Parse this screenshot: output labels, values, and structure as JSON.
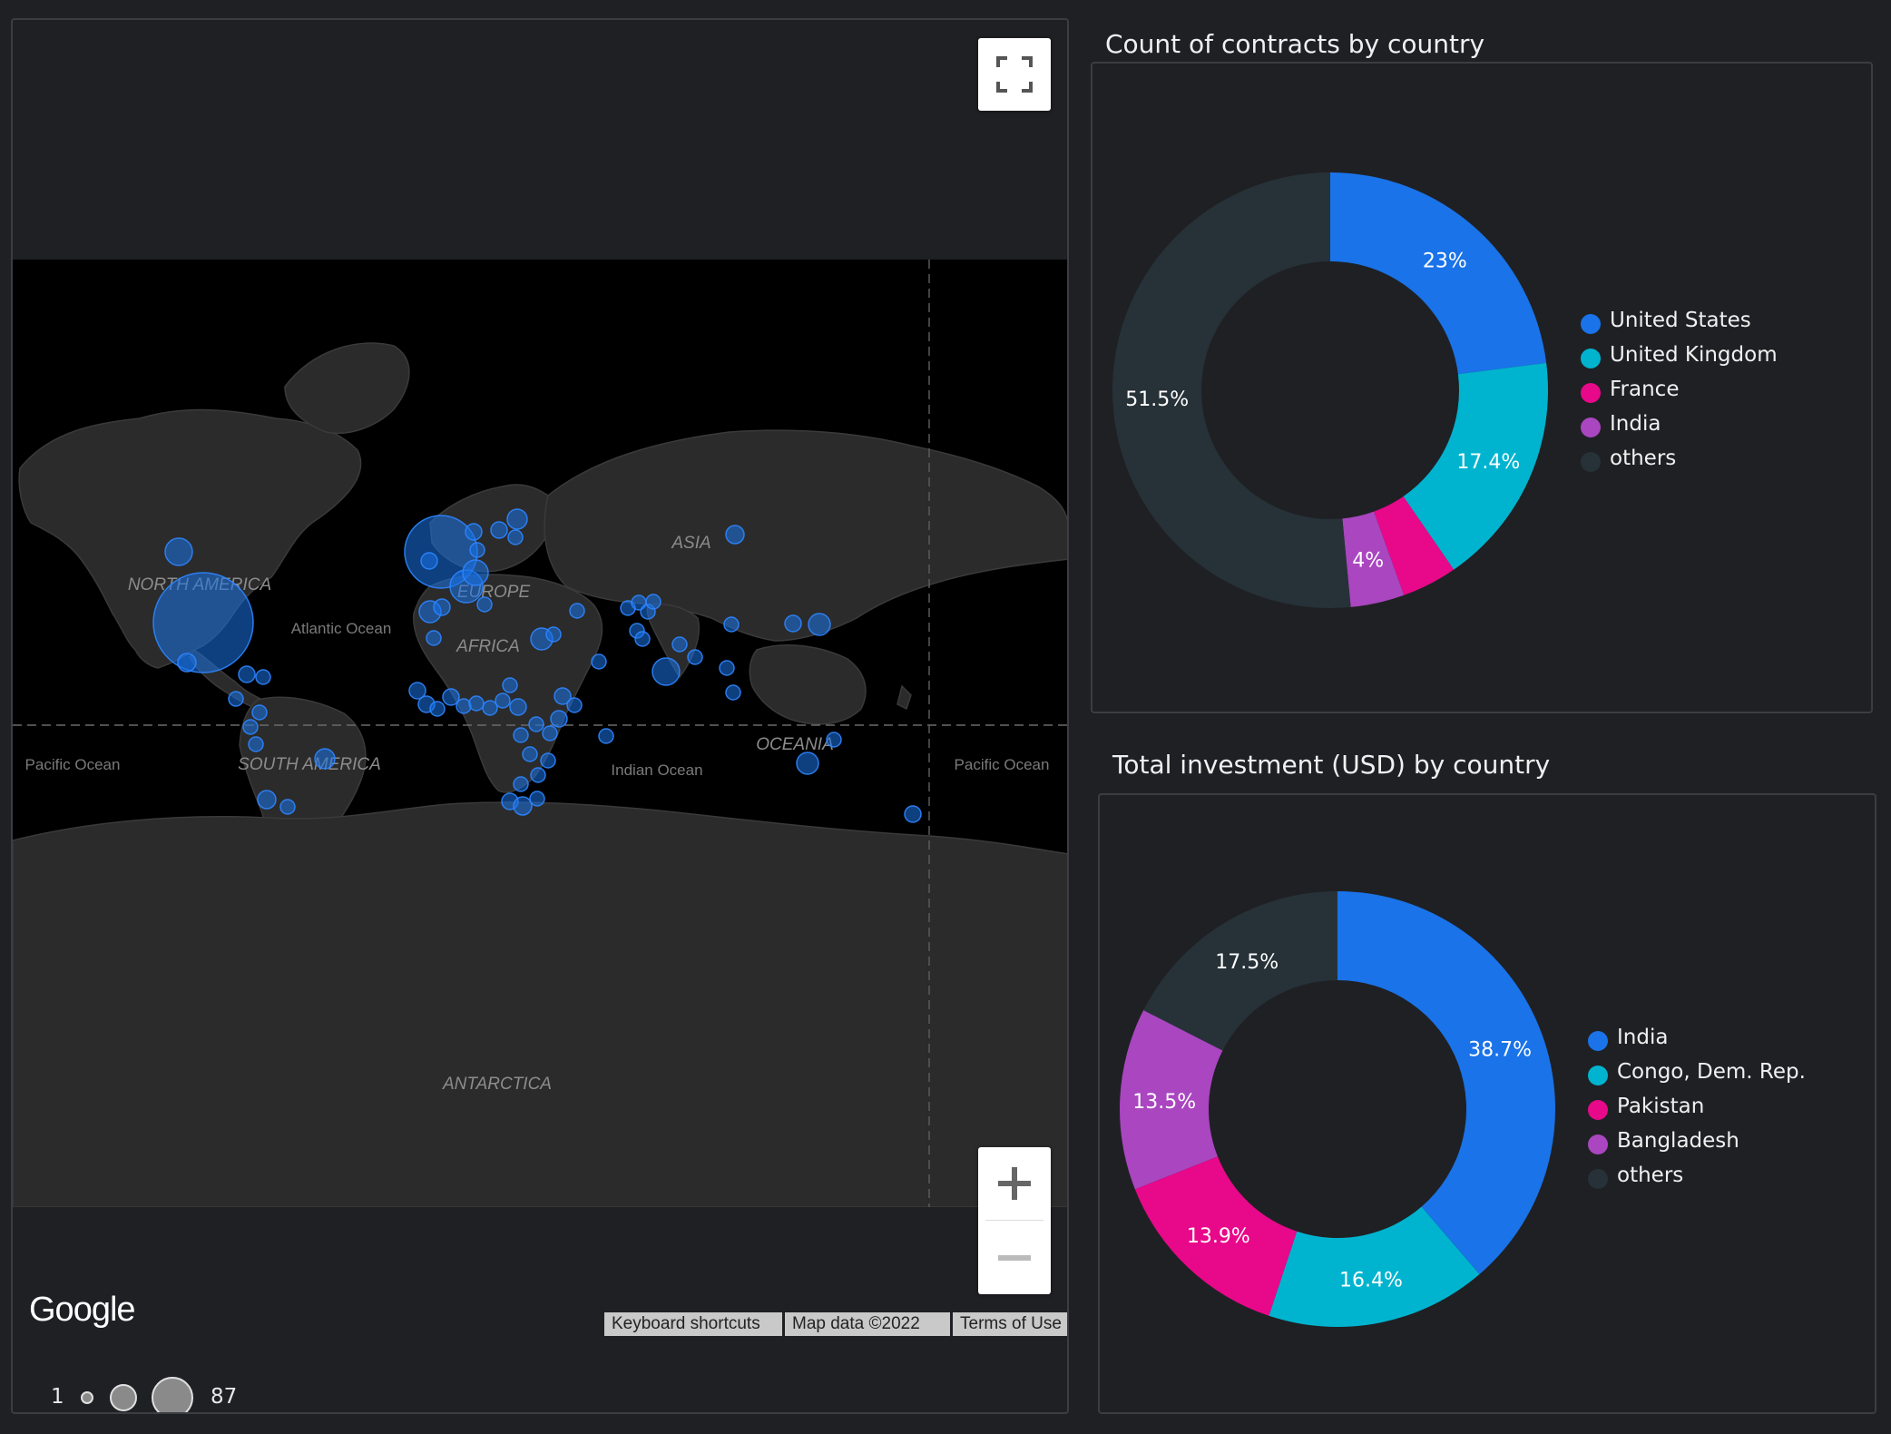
{
  "map": {
    "continent_labels": [
      "NORTH AMERICA",
      "SOUTH AMERICA",
      "EUROPE",
      "AFRICA",
      "ASIA",
      "OCEANIA",
      "ANTARCTICA"
    ],
    "ocean_labels": [
      "Atlantic Ocean",
      "Pacific Ocean",
      "Pacific Ocean",
      "Indian Ocean"
    ],
    "attribution": {
      "keyboard": "Keyboard shortcuts",
      "mapdata": "Map data ©2022",
      "terms": "Terms of Use"
    },
    "logo": "Google",
    "size_legend": {
      "min": "1",
      "max": "87"
    },
    "bubble_color": "#1a73e8",
    "icons": [
      "fullscreen-icon",
      "zoom-in-icon",
      "zoom-out-icon"
    ]
  },
  "charts": {
    "contracts_title": "Count of contracts by country",
    "investment_title": "Total investment (USD) by country"
  },
  "chart_data": [
    {
      "type": "pie",
      "title": "Count of contracts by country",
      "donut": true,
      "categories": [
        "United States",
        "United Kingdom",
        "France",
        "India",
        "others"
      ],
      "values": [
        23,
        17.4,
        4.1,
        4,
        51.5
      ],
      "data_labels": [
        "23%",
        "17.4%",
        "",
        "4%",
        "51.5%"
      ],
      "colors": [
        "#1a73e8",
        "#00b4cf",
        "#e8088a",
        "#a946c0",
        "#263238"
      ],
      "legend": "right"
    },
    {
      "type": "pie",
      "title": "Total investment (USD) by country",
      "donut": true,
      "categories": [
        "India",
        "Congo, Dem. Rep.",
        "Pakistan",
        "Bangladesh",
        "others"
      ],
      "values": [
        38.7,
        16.4,
        13.9,
        13.5,
        17.5
      ],
      "data_labels": [
        "38.7%",
        "16.4%",
        "13.9%",
        "13.5%",
        "17.5%"
      ],
      "colors": [
        "#1a73e8",
        "#00b4cf",
        "#e8088a",
        "#a946c0",
        "#263238"
      ],
      "legend": "right"
    }
  ]
}
